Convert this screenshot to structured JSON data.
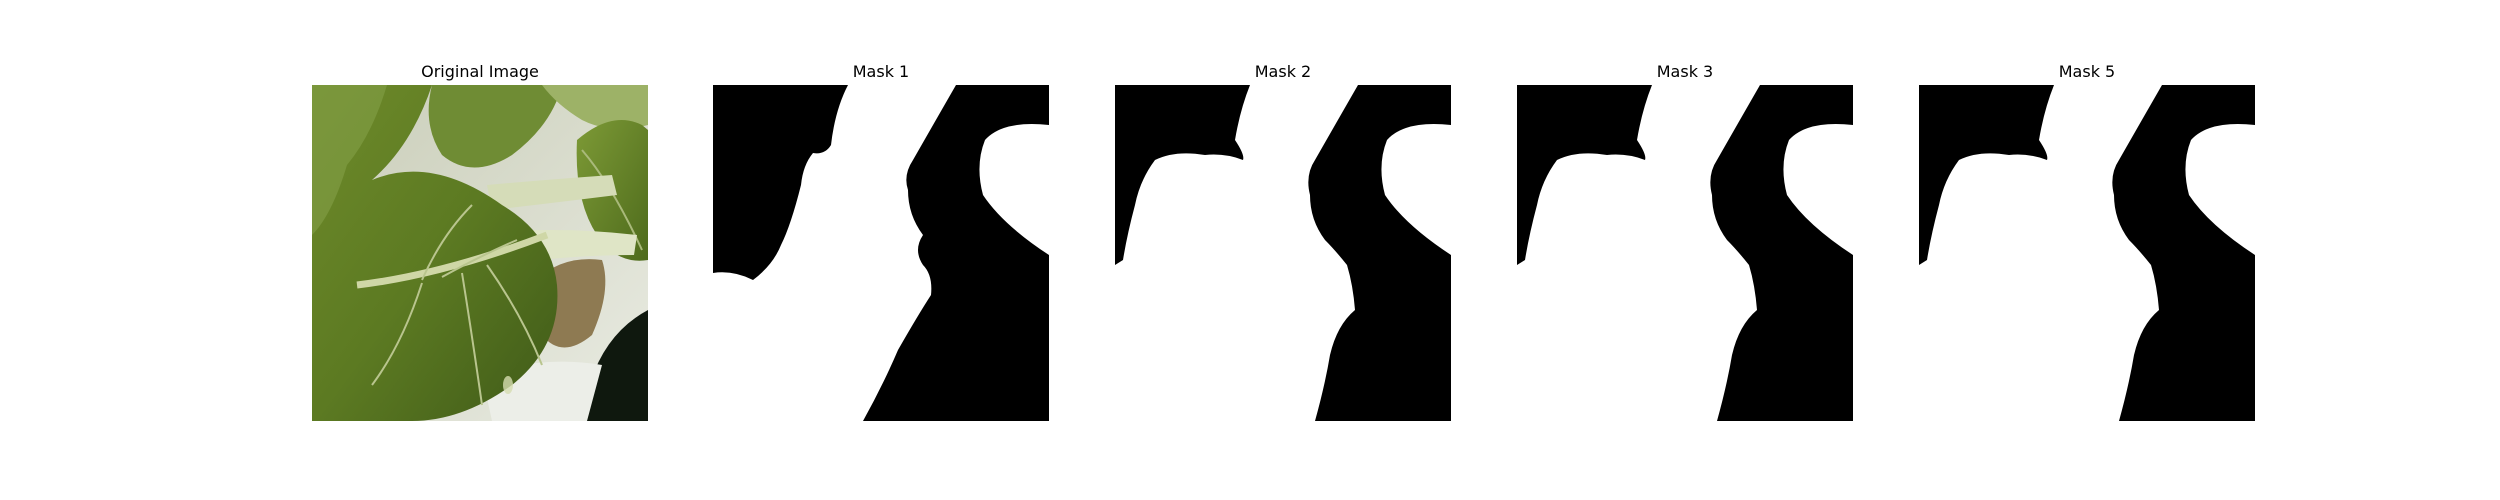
{
  "panels": [
    {
      "title": "Original Image",
      "kind": "photo"
    },
    {
      "title": "Mask 1",
      "kind": "mask"
    },
    {
      "title": "Mask 2",
      "kind": "mask"
    },
    {
      "title": "Mask 3",
      "kind": "mask"
    },
    {
      "title": "Mask 5",
      "kind": "mask"
    }
  ],
  "colors": {
    "background": "#ffffff",
    "mask_foreground": "#ffffff",
    "mask_background": "#000000",
    "leaf_dark": "#4f6a20",
    "leaf_light": "#8ea04a",
    "stem": "#d8dfbc"
  }
}
